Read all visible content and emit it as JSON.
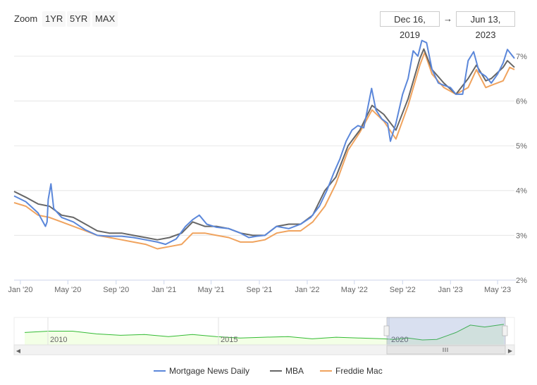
{
  "range_selector": {
    "zoom_label": "Zoom",
    "buttons": [
      "1YR",
      "5YR",
      "MAX"
    ],
    "from_date": "Dec 16, 2019",
    "arrow": "→",
    "to_date": "Jun 13, 2023"
  },
  "colors": {
    "mnd": "#5b87da",
    "mba": "#666666",
    "freddie": "#f0a35e",
    "navigator_line": "#33bb33",
    "navigator_fill": "#f3ffe6",
    "navigator_mask": "rgba(102,133,194,0.25)"
  },
  "navigator": {
    "year_labels": [
      "2010",
      "2015",
      "2020"
    ]
  },
  "chart_data": {
    "type": "line",
    "x_tick_labels": [
      "Jan '20",
      "May '20",
      "Sep '20",
      "Jan '21",
      "May '21",
      "Sep '21",
      "Jan '22",
      "May '22",
      "Sep '22",
      "Jan '23",
      "May '23"
    ],
    "y_tick_labels": [
      "2%",
      "3%",
      "4%",
      "5%",
      "6%",
      "7%"
    ],
    "ylim": [
      2,
      7.5
    ],
    "grid": true,
    "legend_position": "bottom",
    "series": [
      {
        "name": "Mortgage News Daily",
        "key": "mnd",
        "x": [
          "2019-12-16",
          "2020-01-15",
          "2020-02-15",
          "2020-03-05",
          "2020-03-09",
          "2020-03-12",
          "2020-03-19",
          "2020-03-26",
          "2020-04-15",
          "2020-05-15",
          "2020-06-15",
          "2020-07-15",
          "2020-08-15",
          "2020-09-15",
          "2020-10-15",
          "2020-11-15",
          "2020-12-15",
          "2021-01-05",
          "2021-02-01",
          "2021-02-25",
          "2021-03-15",
          "2021-04-01",
          "2021-04-20",
          "2021-05-15",
          "2021-06-15",
          "2021-07-15",
          "2021-08-05",
          "2021-08-25",
          "2021-09-15",
          "2021-10-15",
          "2021-11-15",
          "2021-12-15",
          "2022-01-10",
          "2022-02-01",
          "2022-02-20",
          "2022-03-10",
          "2022-03-25",
          "2022-04-10",
          "2022-04-25",
          "2022-05-10",
          "2022-05-25",
          "2022-06-14",
          "2022-06-25",
          "2022-07-10",
          "2022-07-25",
          "2022-08-01",
          "2022-08-15",
          "2022-09-01",
          "2022-09-15",
          "2022-09-28",
          "2022-10-10",
          "2022-10-20",
          "2022-11-01",
          "2022-11-15",
          "2022-12-01",
          "2022-12-15",
          "2023-01-01",
          "2023-01-15",
          "2023-02-01",
          "2023-02-15",
          "2023-03-01",
          "2023-03-15",
          "2023-04-01",
          "2023-04-15",
          "2023-05-01",
          "2023-05-15",
          "2023-05-26",
          "2023-06-13"
        ],
        "y": [
          3.88,
          3.75,
          3.5,
          3.2,
          3.3,
          3.8,
          4.15,
          3.6,
          3.4,
          3.3,
          3.12,
          3.0,
          2.98,
          2.98,
          2.95,
          2.9,
          2.85,
          2.8,
          2.92,
          3.2,
          3.35,
          3.45,
          3.25,
          3.18,
          3.15,
          3.05,
          2.95,
          2.98,
          3.0,
          3.2,
          3.15,
          3.25,
          3.4,
          3.65,
          4.0,
          4.4,
          4.7,
          5.1,
          5.35,
          5.45,
          5.4,
          6.28,
          5.8,
          5.6,
          5.5,
          5.1,
          5.5,
          6.15,
          6.5,
          7.12,
          7.0,
          7.35,
          7.3,
          6.7,
          6.4,
          6.35,
          6.3,
          6.15,
          6.15,
          6.9,
          7.1,
          6.65,
          6.55,
          6.4,
          6.6,
          6.85,
          7.15,
          6.95
        ]
      },
      {
        "name": "MBA",
        "key": "mba",
        "x": [
          "2019-12-16",
          "2020-01-15",
          "2020-02-15",
          "2020-03-15",
          "2020-04-15",
          "2020-05-15",
          "2020-06-15",
          "2020-07-15",
          "2020-08-15",
          "2020-09-15",
          "2020-10-15",
          "2020-11-15",
          "2020-12-15",
          "2021-01-15",
          "2021-02-15",
          "2021-03-15",
          "2021-04-15",
          "2021-05-15",
          "2021-06-15",
          "2021-07-15",
          "2021-08-15",
          "2021-09-15",
          "2021-10-15",
          "2021-11-15",
          "2021-12-15",
          "2022-01-15",
          "2022-02-15",
          "2022-03-15",
          "2022-04-15",
          "2022-05-15",
          "2022-06-15",
          "2022-07-15",
          "2022-08-15",
          "2022-09-15",
          "2022-10-15",
          "2022-10-25",
          "2022-11-15",
          "2022-12-15",
          "2023-01-15",
          "2023-02-15",
          "2023-03-08",
          "2023-04-01",
          "2023-04-15",
          "2023-05-15",
          "2023-05-26",
          "2023-06-13"
        ],
        "y": [
          3.98,
          3.85,
          3.7,
          3.65,
          3.45,
          3.4,
          3.25,
          3.1,
          3.05,
          3.05,
          3.0,
          2.95,
          2.9,
          2.95,
          3.05,
          3.3,
          3.2,
          3.2,
          3.15,
          3.05,
          3.0,
          3.0,
          3.2,
          3.25,
          3.25,
          3.45,
          4.0,
          4.3,
          5.0,
          5.35,
          5.9,
          5.7,
          5.35,
          6.05,
          6.95,
          7.16,
          6.7,
          6.4,
          6.15,
          6.5,
          6.8,
          6.45,
          6.5,
          6.75,
          6.9,
          6.75
        ]
      },
      {
        "name": "Freddie Mac",
        "key": "freddie",
        "x": [
          "2019-12-16",
          "2020-01-15",
          "2020-02-15",
          "2020-03-15",
          "2020-04-15",
          "2020-05-15",
          "2020-06-15",
          "2020-07-15",
          "2020-08-15",
          "2020-09-15",
          "2020-10-15",
          "2020-11-15",
          "2020-12-15",
          "2021-01-15",
          "2021-02-15",
          "2021-03-15",
          "2021-04-15",
          "2021-05-15",
          "2021-06-15",
          "2021-07-15",
          "2021-08-15",
          "2021-09-15",
          "2021-10-15",
          "2021-11-15",
          "2021-12-15",
          "2022-01-15",
          "2022-02-15",
          "2022-03-15",
          "2022-04-15",
          "2022-05-15",
          "2022-06-15",
          "2022-07-15",
          "2022-08-15",
          "2022-09-15",
          "2022-10-15",
          "2022-10-27",
          "2022-11-15",
          "2022-12-15",
          "2023-01-15",
          "2023-02-15",
          "2023-03-08",
          "2023-04-01",
          "2023-04-15",
          "2023-05-15",
          "2023-06-01",
          "2023-06-13"
        ],
        "y": [
          3.73,
          3.65,
          3.45,
          3.4,
          3.3,
          3.2,
          3.1,
          3.0,
          2.95,
          2.9,
          2.85,
          2.8,
          2.7,
          2.75,
          2.8,
          3.05,
          3.05,
          3.0,
          2.95,
          2.85,
          2.85,
          2.9,
          3.05,
          3.1,
          3.1,
          3.3,
          3.65,
          4.15,
          4.9,
          5.3,
          5.8,
          5.55,
          5.15,
          5.9,
          6.8,
          7.08,
          6.6,
          6.3,
          6.15,
          6.3,
          6.7,
          6.3,
          6.35,
          6.45,
          6.75,
          6.7
        ]
      }
    ]
  }
}
